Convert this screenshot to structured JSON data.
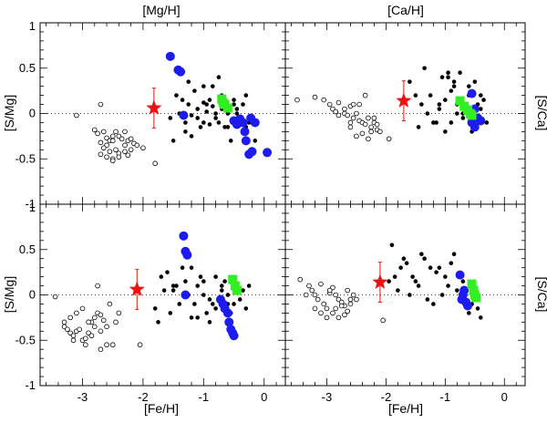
{
  "figure": {
    "top_titles": [
      "[Mg/H]",
      "[Ca/H]"
    ],
    "left_ylabel": "[S/Mg]",
    "right_ylabel": "[S/Ca]",
    "xlabel": "[Fe/H]",
    "colors": {
      "open": "#000000",
      "filled": "#000000",
      "blue": "#1c1cf0",
      "green": "#33ee22",
      "star": "#ee1111",
      "errorbar": "#ee1111"
    }
  },
  "chart_data": [
    {
      "type": "scatter",
      "panel": "top-left",
      "title": "[Mg/H]",
      "xlabel": "[Mg/H]",
      "ylabel": "[S/Mg]",
      "xlim": [
        -3.7,
        0.35
      ],
      "ylim": [
        -1,
        1
      ],
      "x_ticks": [],
      "y_ticks": [
        "1",
        "0.5",
        "0",
        "-0.5",
        "-1"
      ],
      "reference_line_y": 0,
      "series": [
        {
          "name": "open circles",
          "marker": "open-circle",
          "x": [
            -3.1,
            -2.7,
            -2.8,
            -2.75,
            -2.65,
            -2.6,
            -2.55,
            -2.5,
            -2.45,
            -2.4,
            -2.7,
            -2.6,
            -2.5,
            -2.35,
            -2.65,
            -2.55,
            -2.45,
            -2.3,
            -2.25,
            -2.2,
            -2.15,
            -2.7,
            -2.6,
            -2.5,
            -2.4,
            -2.3,
            -2.2,
            -2.5,
            -2.4,
            -2.25,
            -2.3,
            -2.1,
            -2.0,
            -1.8
          ],
          "y": [
            -0.02,
            0.1,
            -0.18,
            -0.22,
            -0.2,
            -0.27,
            -0.3,
            -0.25,
            -0.2,
            -0.25,
            -0.32,
            -0.35,
            -0.3,
            -0.28,
            -0.38,
            -0.42,
            -0.4,
            -0.35,
            -0.3,
            -0.28,
            -0.33,
            -0.45,
            -0.48,
            -0.5,
            -0.44,
            -0.42,
            -0.4,
            -0.52,
            -0.48,
            -0.46,
            -0.2,
            -0.35,
            -0.38,
            -0.55
          ]
        },
        {
          "name": "filled circles",
          "marker": "filled-circle",
          "x": [
            -1.45,
            -1.55,
            -1.35,
            -1.25,
            -1.3,
            -1.2,
            -1.1,
            -1.05,
            -1.0,
            -0.95,
            -0.9,
            -0.85,
            -0.8,
            -0.75,
            -0.7,
            -1.4,
            -1.3,
            -1.15,
            -1.1,
            -1.0,
            -0.9,
            -0.8,
            -0.7,
            -0.6,
            -0.5,
            -0.45,
            -0.4,
            -0.35,
            -0.3,
            -0.25,
            -1.5,
            -1.2,
            -1.0,
            -0.85,
            -0.6,
            -0.55,
            -0.45,
            -0.3,
            -0.2,
            -0.15,
            -0.65,
            -0.75,
            -0.95,
            -1.25,
            -0.5
          ],
          "y": [
            0.2,
            -0.05,
            0.15,
            0.1,
            -0.1,
            -0.02,
            0.05,
            -0.15,
            0.12,
            0.02,
            -0.12,
            0.08,
            -0.05,
            -0.1,
            0.2,
            0.0,
            -0.2,
            0.25,
            -0.05,
            -0.1,
            0.15,
            0.0,
            0.05,
            -0.15,
            0.1,
            0.0,
            -0.05,
            0.1,
            0.2,
            -0.1,
            -0.3,
            -0.25,
            0.3,
            0.3,
            0.0,
            -0.3,
            0.05,
            -0.15,
            -0.1,
            -0.3,
            -0.15,
            0.4,
            0.1,
            0.35,
            0.15
          ]
        },
        {
          "name": "blue filled circles",
          "marker": "big-blue-circle",
          "x": [
            -1.55,
            -1.42,
            -1.38,
            -1.33,
            -0.5,
            -0.45,
            -0.4,
            -0.35,
            -0.3,
            -0.25,
            -0.2,
            -0.22,
            -0.15,
            0.05,
            -0.32
          ],
          "y": [
            0.63,
            0.48,
            0.46,
            -0.02,
            -0.08,
            -0.12,
            -0.06,
            -0.1,
            -0.3,
            -0.45,
            -0.42,
            -0.05,
            -0.1,
            -0.43,
            -0.2
          ]
        },
        {
          "name": "green squares",
          "marker": "green-square",
          "x": [
            -0.7,
            -0.68,
            -0.65,
            -0.6
          ],
          "y": [
            0.16,
            0.12,
            0.1,
            0.06
          ]
        },
        {
          "name": "red star",
          "marker": "red-star",
          "x": [
            -1.82
          ],
          "y": [
            0.06
          ],
          "yerr": [
            0.22
          ]
        }
      ]
    },
    {
      "type": "scatter",
      "panel": "top-right",
      "title": "[Ca/H]",
      "xlabel": "[Ca/H]",
      "ylabel": "[S/Ca]",
      "xlim": [
        -3.7,
        0.35
      ],
      "ylim": [
        -1,
        1
      ],
      "x_ticks": [],
      "y_ticks": [],
      "reference_line_y": 0,
      "series": [
        {
          "name": "open circles",
          "marker": "open-circle",
          "x": [
            -3.5,
            -3.2,
            -3.05,
            -2.95,
            -2.9,
            -2.85,
            -2.8,
            -2.7,
            -2.65,
            -2.6,
            -2.55,
            -2.5,
            -2.45,
            -2.4,
            -2.35,
            -2.3,
            -2.25,
            -2.2,
            -2.15,
            -2.1,
            -2.5,
            -2.4,
            -2.3,
            -2.6,
            -2.7,
            -2.55,
            -2.35,
            -2.2,
            -2.25,
            -2.15,
            -2.8,
            -1.95,
            -2.6,
            -2.45
          ],
          "y": [
            0.15,
            0.18,
            0.15,
            0.1,
            0.05,
            0.02,
            0.12,
            0.0,
            -0.02,
            0.08,
            -0.05,
            0.0,
            -0.08,
            -0.1,
            -0.12,
            -0.05,
            -0.15,
            -0.1,
            -0.18,
            -0.2,
            -0.25,
            -0.22,
            -0.28,
            -0.15,
            0.05,
            0.1,
            0.2,
            -0.05,
            -0.2,
            -0.12,
            -0.02,
            -0.28,
            -0.1,
            0.1
          ]
        },
        {
          "name": "filled circles",
          "marker": "filled-circle",
          "x": [
            -1.6,
            -1.5,
            -1.4,
            -1.3,
            -1.2,
            -1.1,
            -1.0,
            -0.9,
            -0.8,
            -0.7,
            -0.6,
            -0.5,
            -0.4,
            -1.45,
            -1.25,
            -1.15,
            -1.05,
            -0.95,
            -0.85,
            -0.75,
            -0.65,
            -0.55,
            -0.45,
            -0.35,
            -1.35,
            -0.9,
            -0.8,
            -1.0,
            -0.6,
            -0.5,
            -0.7,
            -1.1,
            -0.85,
            -0.95,
            -0.4,
            -0.3
          ],
          "y": [
            0.35,
            0.2,
            0.1,
            0.0,
            -0.1,
            0.05,
            0.15,
            0.25,
            0.1,
            -0.05,
            0.2,
            0.35,
            0.05,
            -0.15,
            0.2,
            -0.1,
            0.4,
            0.45,
            0.3,
            0.45,
            0.05,
            -0.2,
            0.1,
            0.15,
            0.5,
            -0.1,
            0.0,
            -0.2,
            0.3,
            -0.05,
            0.0,
            0.1,
            0.35,
            0.4,
            0.2,
            -0.1
          ]
        },
        {
          "name": "blue filled circles",
          "marker": "big-blue-circle",
          "x": [
            -0.55,
            -0.5,
            -0.45,
            -0.6,
            -0.4,
            -0.55,
            -0.5
          ],
          "y": [
            0.22,
            0.05,
            -0.05,
            0.03,
            -0.08,
            -0.1,
            -0.15
          ]
        },
        {
          "name": "green squares",
          "marker": "green-square",
          "x": [
            -0.75,
            -0.68,
            -0.62,
            -0.58,
            -0.55
          ],
          "y": [
            0.14,
            0.08,
            0.04,
            0.0,
            -0.02
          ]
        },
        {
          "name": "red star",
          "marker": "red-star",
          "x": [
            -1.7
          ],
          "y": [
            0.14
          ],
          "yerr": [
            0.22
          ]
        }
      ]
    },
    {
      "type": "scatter",
      "panel": "bottom-left",
      "title": "",
      "xlabel": "[Fe/H]",
      "ylabel": "[S/Mg]",
      "xlim": [
        -3.7,
        0.35
      ],
      "ylim": [
        -1,
        1
      ],
      "x_ticks": [
        "-3",
        "-2",
        "-1",
        "0"
      ],
      "y_ticks": [
        "1",
        "0.5",
        "0",
        "-0.5",
        "-1"
      ],
      "reference_line_y": 0,
      "series": [
        {
          "name": "open circles",
          "marker": "open-circle",
          "x": [
            -3.45,
            -3.3,
            -3.25,
            -3.2,
            -3.15,
            -3.1,
            -3.05,
            -3.0,
            -2.95,
            -2.9,
            -2.85,
            -2.8,
            -2.75,
            -2.7,
            -2.65,
            -3.2,
            -3.1,
            -3.0,
            -2.9,
            -2.8,
            -3.15,
            -2.95,
            -2.85,
            -2.7,
            -2.6,
            -2.5,
            -2.45,
            -2.4,
            -2.75,
            -2.55,
            -2.6,
            -3.3,
            -2.05,
            -2.7
          ],
          "y": [
            -0.02,
            -0.35,
            -0.38,
            -0.42,
            -0.45,
            -0.4,
            -0.38,
            -0.5,
            -0.48,
            -0.42,
            -0.3,
            -0.25,
            -0.2,
            -0.22,
            -0.28,
            -0.25,
            -0.2,
            -0.15,
            -0.3,
            -0.35,
            -0.5,
            -0.55,
            -0.45,
            -0.4,
            -0.55,
            -0.55,
            -0.3,
            -0.2,
            0.1,
            -0.1,
            -0.35,
            -0.3,
            -0.55,
            -0.6
          ]
        },
        {
          "name": "filled circles",
          "marker": "filled-circle",
          "x": [
            -1.8,
            -1.7,
            -1.6,
            -1.5,
            -1.4,
            -1.3,
            -1.2,
            -1.1,
            -1.0,
            -0.9,
            -0.8,
            -0.7,
            -0.6,
            -0.5,
            -0.4,
            -0.35,
            -0.3,
            -0.25,
            -1.75,
            -1.55,
            -1.45,
            -1.35,
            -1.25,
            -1.15,
            -1.05,
            -0.95,
            -0.85,
            -0.75,
            -0.65,
            -0.55,
            -0.45,
            -1.5,
            -1.2,
            -1.0,
            -0.9,
            -0.8,
            -0.7,
            -0.6,
            -1.65,
            -1.1
          ],
          "y": [
            -0.15,
            0.2,
            0.25,
            0.05,
            -0.1,
            0.15,
            -0.25,
            0.1,
            0.0,
            -0.05,
            0.2,
            0.1,
            0.0,
            -0.1,
            -0.05,
            0.05,
            -0.15,
            0.1,
            -0.3,
            -0.2,
            0.1,
            0.3,
            0.0,
            -0.1,
            0.2,
            -0.2,
            -0.1,
            -0.05,
            0.15,
            -0.2,
            0.05,
            0.1,
            0.3,
            0.15,
            -0.3,
            -0.15,
            0.05,
            -0.1,
            0.05,
            -0.25
          ]
        },
        {
          "name": "blue filled circles",
          "marker": "big-blue-circle",
          "x": [
            -1.33,
            -1.3,
            -1.27,
            -1.3,
            -0.72,
            -0.68,
            -0.65,
            -0.6,
            -0.58,
            -0.55,
            -0.52,
            -0.5
          ],
          "y": [
            0.65,
            0.48,
            0.44,
            0.0,
            -0.05,
            -0.1,
            -0.15,
            -0.2,
            -0.3,
            -0.38,
            -0.42,
            -0.45
          ]
        },
        {
          "name": "green squares",
          "marker": "green-square",
          "x": [
            -0.52,
            -0.48,
            -0.45
          ],
          "y": [
            0.17,
            0.1,
            0.05
          ]
        },
        {
          "name": "red star",
          "marker": "red-star",
          "x": [
            -2.1
          ],
          "y": [
            0.06
          ],
          "yerr": [
            0.22
          ]
        }
      ]
    },
    {
      "type": "scatter",
      "panel": "bottom-right",
      "title": "",
      "xlabel": "[Fe/H]",
      "ylabel": "[S/Ca]",
      "xlim": [
        -3.7,
        0.35
      ],
      "ylim": [
        -1,
        1
      ],
      "x_ticks": [
        "-3",
        "-2",
        "-1",
        "0"
      ],
      "y_ticks": [],
      "reference_line_y": 0,
      "series": [
        {
          "name": "open circles",
          "marker": "open-circle",
          "x": [
            -3.45,
            -3.3,
            -3.25,
            -3.2,
            -3.15,
            -3.1,
            -3.05,
            -3.0,
            -2.95,
            -2.9,
            -2.85,
            -2.8,
            -2.75,
            -2.7,
            -2.65,
            -2.6,
            -2.55,
            -3.2,
            -3.0,
            -2.9,
            -2.8,
            -2.7,
            -3.35,
            -3.1,
            -2.6,
            -2.5,
            -2.65,
            -2.85,
            -2.75,
            -2.95,
            -2.05
          ],
          "y": [
            0.17,
            0.1,
            0.05,
            0.0,
            -0.05,
            0.12,
            -0.1,
            -0.15,
            0.02,
            0.08,
            0.0,
            -0.05,
            -0.08,
            -0.12,
            -0.18,
            -0.05,
            0.0,
            -0.15,
            -0.25,
            -0.2,
            -0.25,
            -0.22,
            0.0,
            -0.2,
            -0.1,
            -0.05,
            0.05,
            -0.15,
            -0.12,
            0.05,
            -0.28
          ]
        },
        {
          "name": "filled circles",
          "marker": "filled-circle",
          "x": [
            -1.95,
            -1.85,
            -1.75,
            -1.65,
            -1.55,
            -1.45,
            -1.35,
            -1.25,
            -1.15,
            -1.05,
            -0.95,
            -0.85,
            -0.75,
            -0.65,
            -0.55,
            -0.45,
            -1.9,
            -1.7,
            -1.5,
            -1.3,
            -1.1,
            -0.9,
            -0.7,
            -0.5,
            -1.6,
            -1.4,
            -1.2,
            -1.0,
            -0.8,
            -0.6,
            -0.4,
            -1.8
          ],
          "y": [
            0.15,
            0.2,
            0.3,
            0.35,
            0.2,
            0.1,
            0.4,
            0.3,
            0.25,
            0.0,
            0.1,
            0.45,
            0.2,
            0.05,
            -0.1,
            -0.15,
            0.55,
            0.4,
            0.15,
            -0.05,
            0.3,
            0.35,
            0.15,
            -0.05,
            0.0,
            0.45,
            -0.1,
            0.2,
            0.05,
            -0.2,
            -0.25,
            0.05
          ]
        },
        {
          "name": "blue filled circles",
          "marker": "big-blue-circle",
          "x": [
            -0.75,
            -0.68,
            -0.72,
            -0.65,
            -0.62,
            -0.7
          ],
          "y": [
            0.22,
            0.05,
            -0.05,
            -0.08,
            -0.12,
            0.0
          ]
        },
        {
          "name": "green squares",
          "marker": "green-square",
          "x": [
            -0.55,
            -0.52,
            -0.5,
            -0.48
          ],
          "y": [
            0.12,
            0.05,
            0.0,
            -0.03
          ]
        },
        {
          "name": "red star",
          "marker": "red-star",
          "x": [
            -2.1
          ],
          "y": [
            0.14
          ],
          "yerr": [
            0.22
          ]
        }
      ]
    }
  ]
}
